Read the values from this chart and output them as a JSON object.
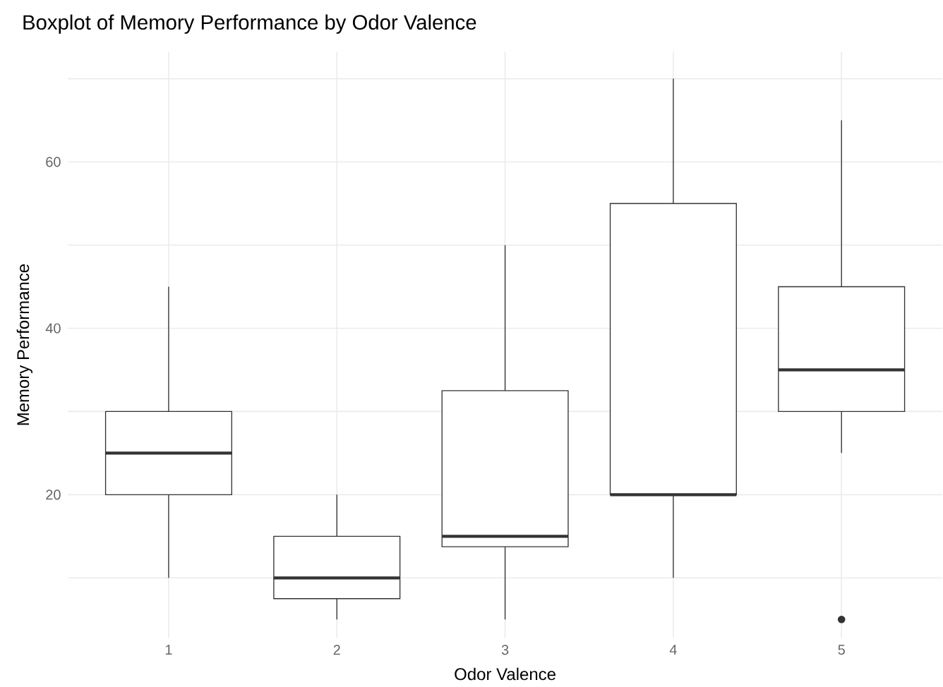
{
  "chart_data": {
    "type": "box",
    "title": "Boxplot of Memory Performance by Odor Valence",
    "xlabel": "Odor Valence",
    "ylabel": "Memory Performance",
    "categories": [
      "1",
      "2",
      "3",
      "4",
      "5"
    ],
    "boxes": [
      {
        "low": 10,
        "q1": 20,
        "median": 25,
        "q3": 30,
        "high": 45
      },
      {
        "low": 5,
        "q1": 7.5,
        "median": 10,
        "q3": 15,
        "high": 20
      },
      {
        "low": 5,
        "q1": 13.75,
        "median": 15,
        "q3": 32.5,
        "high": 50
      },
      {
        "low": 10,
        "q1": 20,
        "median": 20,
        "q3": 55,
        "high": 70
      },
      {
        "low": 25,
        "q1": 30,
        "median": 35,
        "q3": 45,
        "high": 65,
        "outliers": [
          5
        ]
      }
    ],
    "color": "#333333",
    "ylim": [
      2.75,
      73.25
    ],
    "yticks": [
      {
        "value": 10,
        "label": null
      },
      20,
      {
        "value": 30,
        "label": null
      },
      40,
      {
        "value": 50,
        "label": null
      },
      60,
      {
        "value": 70,
        "label": null
      }
    ],
    "grid": true
  }
}
